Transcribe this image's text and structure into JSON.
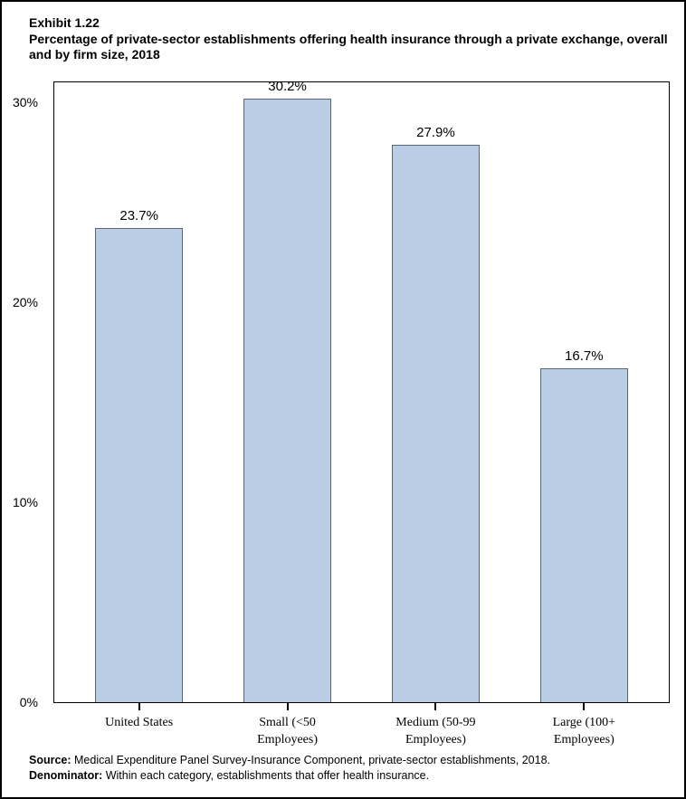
{
  "header": {
    "exhibit": "Exhibit 1.22",
    "title": "Percentage of private-sector establishments offering health insurance through a private exchange, overall and by firm size, 2018"
  },
  "chart_data": {
    "type": "bar",
    "title": "Percentage of private-sector establishments offering health insurance through a private exchange, overall and by firm size, 2018",
    "categories": [
      "United States",
      "Small (<50 Employees)",
      "Medium (50-99 Employees)",
      "Large (100+ Employees)"
    ],
    "values": [
      23.7,
      30.2,
      27.9,
      16.7
    ],
    "data_labels": [
      "23.7%",
      "30.2%",
      "27.9%",
      "16.7%"
    ],
    "xlabel": "",
    "ylabel": "",
    "ylim": [
      0,
      31
    ],
    "yticks": [
      {
        "value": 0,
        "label": "0%"
      },
      {
        "value": 10,
        "label": "10%"
      },
      {
        "value": 20,
        "label": "20%"
      },
      {
        "value": 30,
        "label": "30%"
      }
    ],
    "grid": false,
    "legend": "none",
    "bar_fill": "#B9CDE4",
    "bar_border": "#5A6775",
    "axis_color": "#000000",
    "text_color": "#000000"
  },
  "footer": {
    "source_label": "Source:",
    "source_text": " Medical Expenditure Panel Survey-Insurance Component, private-sector establishments, 2018.",
    "denominator_label": "Denominator:",
    "denominator_text": " Within each category, establishments that offer health insurance."
  }
}
